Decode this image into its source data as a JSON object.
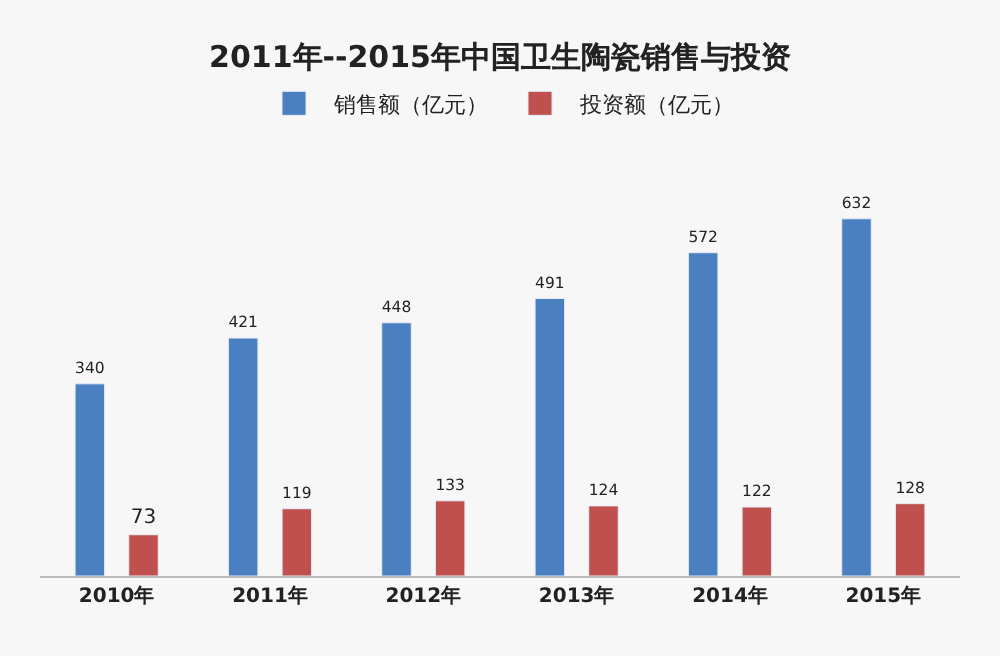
{
  "chart_data": {
    "type": "bar",
    "title": "2011年--2015年中国卫生陶瓷销售与投资",
    "categories": [
      "2010年",
      "2011年",
      "2012年",
      "2013年",
      "2014年",
      "2015年"
    ],
    "series": [
      {
        "name": "销售额（亿元）",
        "color": "#4a7fc1",
        "values": [
          340,
          421,
          448,
          491,
          572,
          632
        ]
      },
      {
        "name": "投资额（亿元）",
        "color": "#c0504d",
        "values": [
          73,
          119,
          133,
          124,
          122,
          128
        ]
      }
    ],
    "data_labels": true,
    "legend": "top",
    "grid": false
  }
}
